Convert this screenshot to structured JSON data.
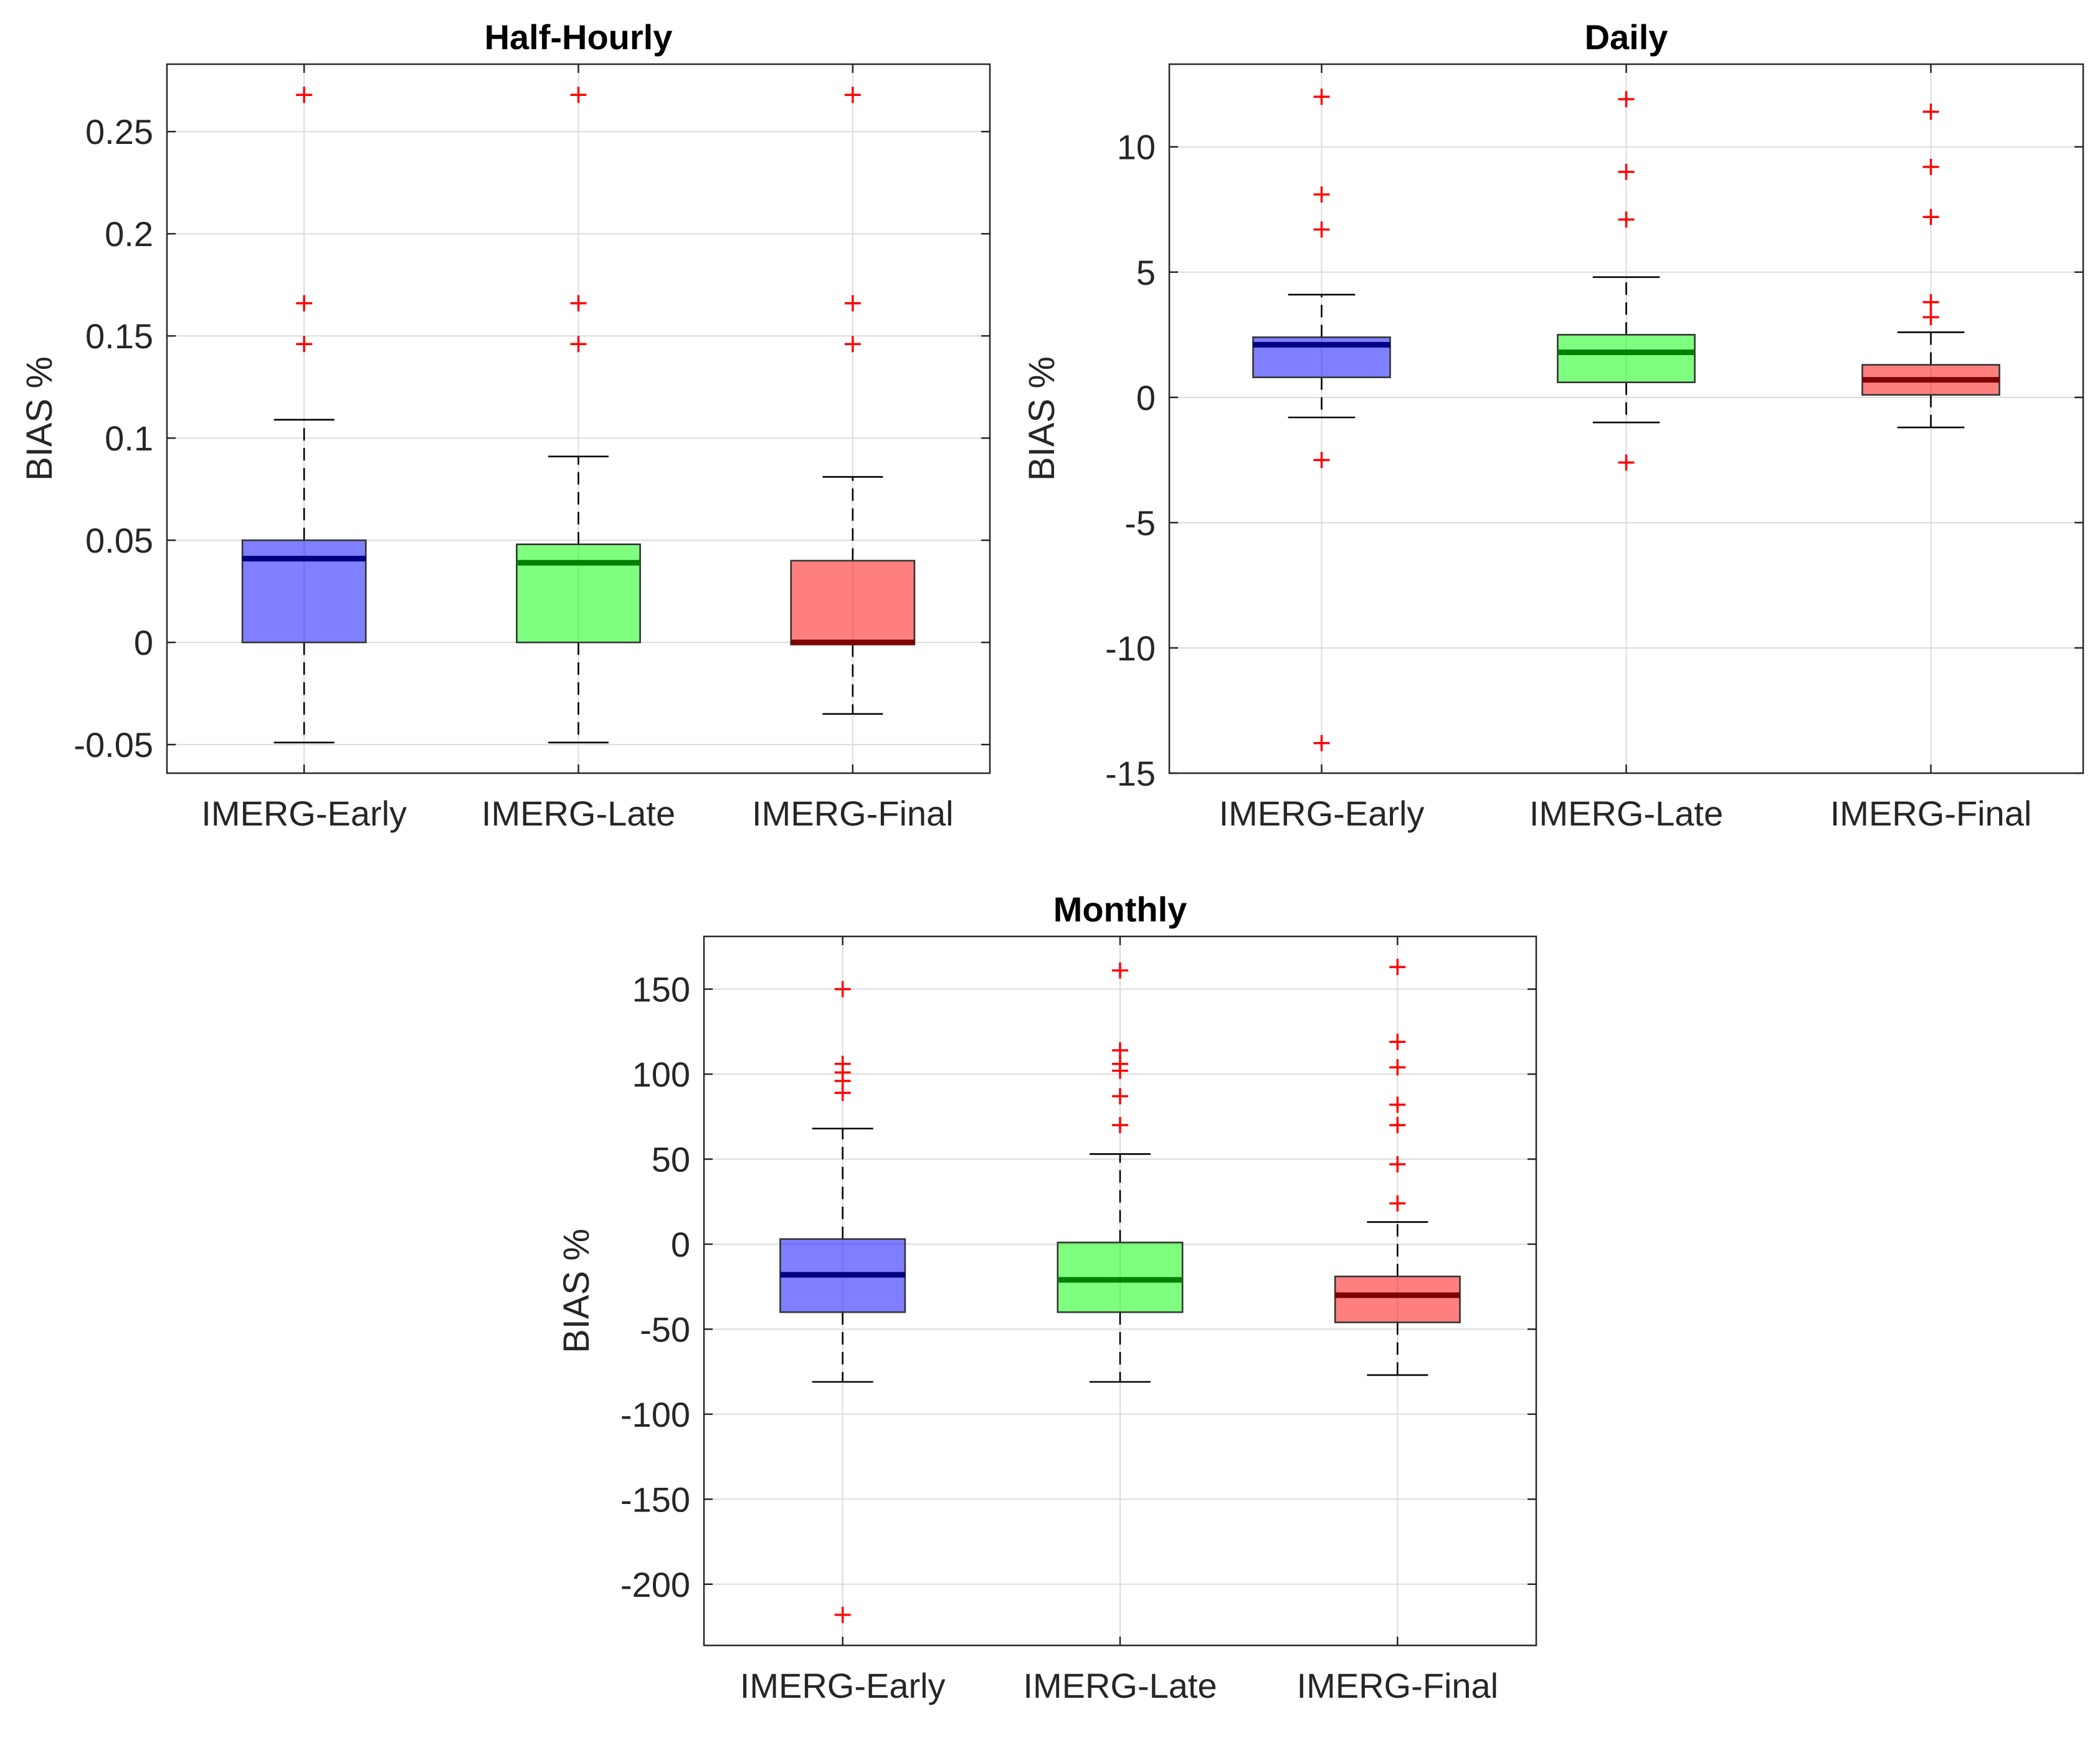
{
  "chart_data": [
    {
      "type": "box",
      "title": "Half-Hourly",
      "xlabel": "",
      "ylabel": "BIAS %",
      "categories": [
        "IMERG-Early",
        "IMERG-Late",
        "IMERG-Final"
      ],
      "ylim": [
        -0.064,
        0.283
      ],
      "yticks": [
        -0.05,
        0,
        0.05,
        0.1,
        0.15,
        0.2,
        0.25
      ],
      "ytick_labels": [
        "-0.05",
        "0",
        "0.05",
        "0.1",
        "0.15",
        "0.2",
        "0.25"
      ],
      "grid": true,
      "boxes": [
        {
          "name": "IMERG-Early",
          "color": "#0000ff",
          "median_color": "#000080",
          "whisker_low": -0.049,
          "q1": 0.0,
          "median": 0.041,
          "q3": 0.05,
          "whisker_high": 0.109,
          "outliers": [
            0.146,
            0.166,
            0.268
          ]
        },
        {
          "name": "IMERG-Late",
          "color": "#00ff00",
          "median_color": "#008000",
          "whisker_low": -0.049,
          "q1": 0.0,
          "median": 0.039,
          "q3": 0.048,
          "whisker_high": 0.091,
          "outliers": [
            0.146,
            0.166,
            0.268
          ]
        },
        {
          "name": "IMERG-Final",
          "color": "#ff0000",
          "median_color": "#800000",
          "whisker_low": -0.035,
          "q1": -0.001,
          "median": 0.0,
          "q3": 0.04,
          "whisker_high": 0.081,
          "outliers": [
            0.146,
            0.166,
            0.268
          ]
        }
      ]
    },
    {
      "type": "box",
      "title": "Daily",
      "xlabel": "",
      "ylabel": "BIAS %",
      "categories": [
        "IMERG-Early",
        "IMERG-Late",
        "IMERG-Final"
      ],
      "ylim": [
        -15,
        13.3
      ],
      "yticks": [
        -15,
        -10,
        -5,
        0,
        5,
        10
      ],
      "ytick_labels": [
        "-15",
        "-10",
        "-5",
        "0",
        "5",
        "10"
      ],
      "grid": true,
      "boxes": [
        {
          "name": "IMERG-Early",
          "color": "#0000ff",
          "median_color": "#000080",
          "whisker_low": -0.8,
          "q1": 0.8,
          "median": 2.1,
          "q3": 2.4,
          "whisker_high": 4.1,
          "outliers": [
            -13.8,
            -2.5,
            6.7,
            8.1,
            12.0
          ]
        },
        {
          "name": "IMERG-Late",
          "color": "#00ff00",
          "median_color": "#008000",
          "whisker_low": -1.0,
          "q1": 0.6,
          "median": 1.8,
          "q3": 2.5,
          "whisker_high": 4.8,
          "outliers": [
            -2.6,
            7.1,
            9.0,
            11.9
          ]
        },
        {
          "name": "IMERG-Final",
          "color": "#ff0000",
          "median_color": "#800000",
          "whisker_low": -1.2,
          "q1": 0.1,
          "median": 0.7,
          "q3": 1.3,
          "whisker_high": 2.6,
          "outliers": [
            3.2,
            3.8,
            7.2,
            9.2,
            11.4
          ]
        }
      ]
    },
    {
      "type": "box",
      "title": "Monthly",
      "xlabel": "",
      "ylabel": "BIAS %",
      "categories": [
        "IMERG-Early",
        "IMERG-Late",
        "IMERG-Final"
      ],
      "ylim": [
        -236,
        181
      ],
      "yticks": [
        -200,
        -150,
        -100,
        -50,
        0,
        50,
        100,
        150
      ],
      "ytick_labels": [
        "-200",
        "-150",
        "-100",
        "-50",
        "0",
        "50",
        "100",
        "150"
      ],
      "grid": true,
      "boxes": [
        {
          "name": "IMERG-Early",
          "color": "#0000ff",
          "median_color": "#000080",
          "whisker_low": -81,
          "q1": -40,
          "median": -18,
          "q3": 3,
          "whisker_high": 68,
          "outliers": [
            -218,
            89,
            96,
            101,
            106,
            150
          ]
        },
        {
          "name": "IMERG-Late",
          "color": "#00ff00",
          "median_color": "#008000",
          "whisker_low": -81,
          "q1": -40,
          "median": -21,
          "q3": 1,
          "whisker_high": 53,
          "outliers": [
            70,
            87,
            102,
            106,
            114,
            161
          ]
        },
        {
          "name": "IMERG-Final",
          "color": "#ff0000",
          "median_color": "#800000",
          "whisker_low": -77,
          "q1": -46,
          "median": -30,
          "q3": -19,
          "whisker_high": 13,
          "outliers": [
            24,
            47,
            70,
            82,
            104,
            119,
            163
          ]
        }
      ]
    }
  ]
}
